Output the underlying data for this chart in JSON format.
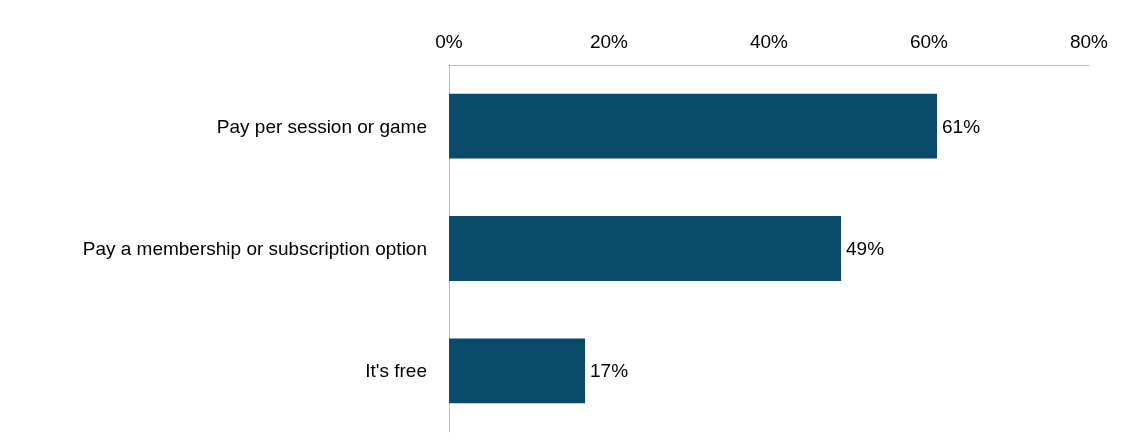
{
  "chart_data": {
    "type": "bar",
    "orientation": "horizontal",
    "categories": [
      "Pay per session or game",
      "Pay a membership or subscription option",
      "It's free"
    ],
    "values": [
      61,
      49,
      17
    ],
    "value_labels": [
      "61%",
      "49%",
      "17%"
    ],
    "color": "#0a4a6b",
    "xlim": [
      0,
      80
    ],
    "xticks": [
      {
        "value": 0,
        "label": "0%"
      },
      {
        "value": 20,
        "label": "20%"
      },
      {
        "value": 40,
        "label": "40%"
      },
      {
        "value": 60,
        "label": "60%"
      },
      {
        "value": 80,
        "label": "80%"
      }
    ],
    "grid": false
  }
}
